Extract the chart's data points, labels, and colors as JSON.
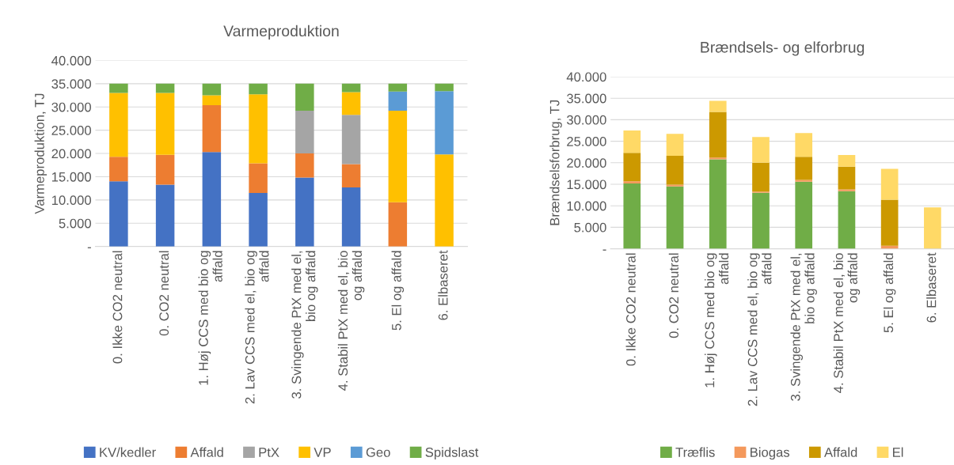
{
  "chart_data": [
    {
      "type": "bar",
      "title": "Varmeproduktion",
      "ylabel": "Varmeproduktion, TJ",
      "stacked": true,
      "grid": "y",
      "legend": "bottom",
      "categories": [
        "0. Ikke CO2 neutral",
        "0. CO2 neutral",
        "1. Høj CCS med bio og\naffald",
        "2. Lav CCS med el, bio og\naffald",
        "3. Svingende PtX med el,\nbio og affald",
        "4. Stabil PtX med el, bio\nog affald",
        "5. El og affald",
        "6. Elbaseret"
      ],
      "ylim": [
        0,
        40000
      ],
      "yticks": [
        {
          "value": 0,
          "label": "-"
        },
        {
          "value": 5000,
          "label": "5.000"
        },
        {
          "value": 10000,
          "label": "10.000"
        },
        {
          "value": 15000,
          "label": "15.000"
        },
        {
          "value": 20000,
          "label": "20.000"
        },
        {
          "value": 25000,
          "label": "25.000"
        },
        {
          "value": 30000,
          "label": "30.000"
        },
        {
          "value": 35000,
          "label": "35.000"
        },
        {
          "value": 40000,
          "label": "40.000"
        }
      ],
      "series": [
        {
          "name": "KV/kedler",
          "color": "#4472c4",
          "values": [
            14000,
            13300,
            20300,
            11500,
            14800,
            12700,
            0,
            0
          ]
        },
        {
          "name": "Affald",
          "color": "#ed7d31",
          "values": [
            5300,
            6400,
            10100,
            6400,
            5200,
            5000,
            9500,
            0
          ]
        },
        {
          "name": "PtX",
          "color": "#a5a5a5",
          "values": [
            0,
            0,
            0,
            0,
            9200,
            10600,
            0,
            0
          ]
        },
        {
          "name": "VP",
          "color": "#ffc000",
          "values": [
            13700,
            13300,
            2100,
            14800,
            0,
            4900,
            19700,
            19800
          ]
        },
        {
          "name": "Geo",
          "color": "#5b9bd5",
          "values": [
            0,
            0,
            0,
            0,
            0,
            0,
            4100,
            13600
          ]
        },
        {
          "name": "Spidslast",
          "color": "#70ad47",
          "values": [
            2000,
            2000,
            2500,
            2300,
            5800,
            1800,
            1700,
            1600
          ]
        }
      ]
    },
    {
      "type": "bar",
      "title": "Brændsels- og elforbrug",
      "ylabel": "Brændselsforbrug, TJ",
      "stacked": true,
      "grid": "y",
      "legend": "bottom",
      "categories": [
        "0. Ikke CO2 neutral",
        "0. CO2 neutral",
        "1. Høj CCS med bio og\naffald",
        "2. Lav CCS med el, bio og\naffald",
        "3. Svingende PtX med el,\nbio og affald",
        "4. Stabil PtX med el, bio\nog affald",
        "5. El og affald",
        "6. Elbaseret"
      ],
      "ylim": [
        0,
        40000
      ],
      "yticks": [
        {
          "value": 0,
          "label": "-"
        },
        {
          "value": 5000,
          "label": "5.000"
        },
        {
          "value": 10000,
          "label": "10.000"
        },
        {
          "value": 15000,
          "label": "15.000"
        },
        {
          "value": 20000,
          "label": "20.000"
        },
        {
          "value": 25000,
          "label": "25.000"
        },
        {
          "value": 30000,
          "label": "30.000"
        },
        {
          "value": 35000,
          "label": "35.000"
        },
        {
          "value": 40000,
          "label": "40.000"
        }
      ],
      "series": [
        {
          "name": "Træflis",
          "color": "#70ad47",
          "values": [
            15200,
            14500,
            20800,
            13000,
            15600,
            13400,
            0,
            0
          ]
        },
        {
          "name": "Biogas",
          "color": "#f4995c",
          "values": [
            500,
            400,
            400,
            300,
            400,
            400,
            700,
            0
          ]
        },
        {
          "name": "Affald",
          "color": "#cc9900",
          "values": [
            6600,
            6700,
            10600,
            6700,
            5400,
            5300,
            10700,
            0
          ]
        },
        {
          "name": "El",
          "color": "#ffd966",
          "values": [
            5200,
            5100,
            2600,
            6000,
            5500,
            2700,
            7200,
            9600
          ]
        }
      ]
    }
  ]
}
